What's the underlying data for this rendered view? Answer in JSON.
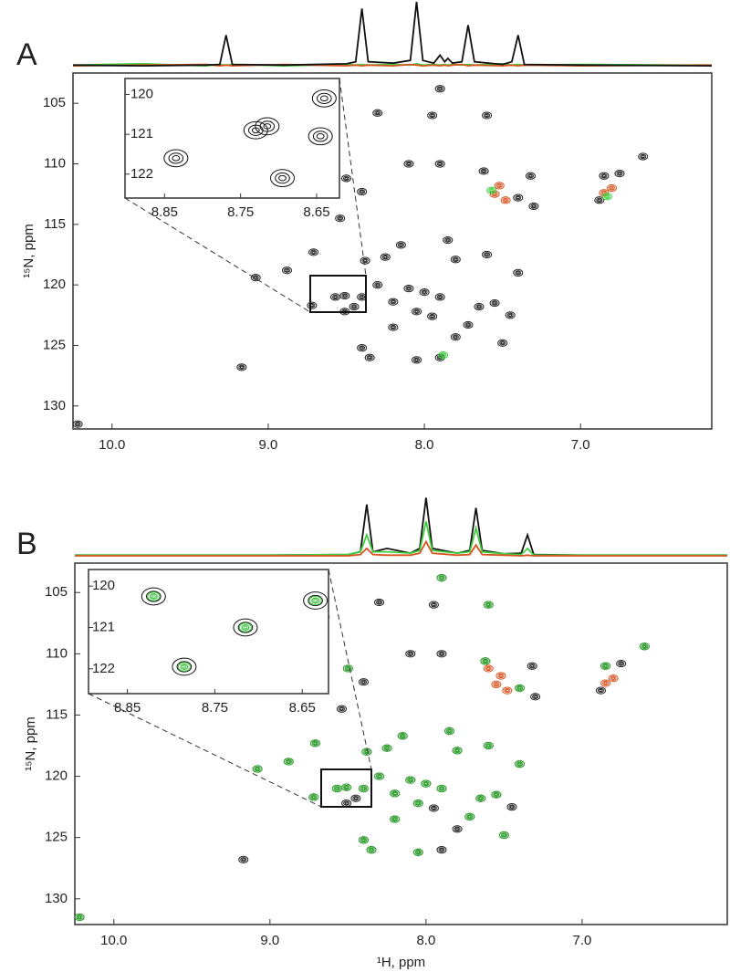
{
  "chart_data": [
    {
      "type": "scatter",
      "panel_label": "A",
      "y_label": "¹⁵N, ppm",
      "xlim": [
        10.25,
        6.16
      ],
      "ylim": [
        102.5,
        131.9
      ],
      "xticks": [
        {
          "value": 10,
          "label": "10.0"
        },
        {
          "value": 9,
          "label": "9.0"
        },
        {
          "value": 8,
          "label": "8.0"
        },
        {
          "value": 7,
          "label": "7.0"
        }
      ],
      "yticks": [
        105,
        110,
        115,
        120,
        125,
        130
      ],
      "series": [
        {
          "color": "#222222",
          "x": [
            10.22,
            9.17,
            9.08,
            8.88,
            8.71,
            8.54,
            8.72,
            8.57,
            8.51,
            8.51,
            8.4,
            8.35,
            8.4,
            8.5,
            8.1,
            7.9,
            7.9,
            7.6,
            7.95,
            8.3,
            8.65,
            8.38,
            8.25,
            8.15,
            7.85,
            7.8,
            7.6,
            7.4,
            7.55,
            7.65,
            7.45,
            7.72,
            7.5,
            7.9,
            8.0,
            8.1,
            8.2,
            8.3,
            8.4,
            8.45,
            8.05,
            7.95,
            8.2,
            7.8,
            7.62,
            7.4,
            7.32,
            7.3,
            6.85,
            6.75,
            6.6,
            6.88,
            8.05,
            7.9
          ],
          "values": [
            131.5,
            126.8,
            119.4,
            118.8,
            117.3,
            114.5,
            121.7,
            121.0,
            120.9,
            122.2,
            125.2,
            126.0,
            112.3,
            111.2,
            110.0,
            110.0,
            103.8,
            106.0,
            106.0,
            105.8,
            107.0,
            118.0,
            117.7,
            116.7,
            116.3,
            117.9,
            117.5,
            119.0,
            121.5,
            121.8,
            122.5,
            123.3,
            124.8,
            121.0,
            120.6,
            120.3,
            121.4,
            120.0,
            121.0,
            121.8,
            122.2,
            122.6,
            123.5,
            124.3,
            110.6,
            112.8,
            111.0,
            113.5,
            111.0,
            110.8,
            109.4,
            113.0,
            126.2,
            126.0
          ]
        },
        {
          "color": "#d9531e",
          "x": [
            7.55,
            7.48,
            6.85,
            6.8,
            7.52
          ],
          "values": [
            112.5,
            113.0,
            112.4,
            112.0,
            111.8
          ]
        },
        {
          "color": "#3ecf3e",
          "x": [
            7.57,
            6.83,
            7.88
          ],
          "values": [
            112.2,
            112.7,
            125.8
          ]
        }
      ],
      "projection": {
        "ylim": [
          0,
          1
        ],
        "x": [
          10.25,
          9.8,
          9.4,
          9.31,
          9.27,
          9.23,
          8.9,
          8.5,
          8.44,
          8.4,
          8.36,
          8.2,
          8.09,
          8.05,
          8.01,
          7.94,
          7.9,
          7.87,
          7.85,
          7.82,
          7.76,
          7.72,
          7.68,
          7.5,
          7.44,
          7.4,
          7.36,
          7.0,
          6.16
        ],
        "series": [
          {
            "color": "#3ecf3e",
            "values": [
              0.05,
              0.07,
              0.04,
              0.06,
              0.05,
              0.06,
              0.04,
              0.06,
              0.05,
              0.06,
              0.05,
              0.06,
              0.05,
              0.07,
              0.05,
              0.06,
              0.05,
              0.06,
              0.05,
              0.06,
              0.05,
              0.06,
              0.05,
              0.07,
              0.05,
              0.06,
              0.05,
              0.06,
              0.05
            ]
          },
          {
            "color": "#d9531e",
            "values": [
              0.04,
              0.05,
              0.06,
              0.04,
              0.05,
              0.04,
              0.06,
              0.04,
              0.05,
              0.04,
              0.05,
              0.04,
              0.06,
              0.05,
              0.04,
              0.05,
              0.04,
              0.05,
              0.04,
              0.05,
              0.06,
              0.04,
              0.05,
              0.04,
              0.05,
              0.04,
              0.05,
              0.04,
              0.05
            ]
          },
          {
            "color": "#111111",
            "values": [
              0.05,
              0.04,
              0.05,
              0.06,
              0.5,
              0.06,
              0.05,
              0.07,
              0.1,
              0.9,
              0.1,
              0.08,
              0.12,
              1.0,
              0.12,
              0.08,
              0.2,
              0.1,
              0.15,
              0.08,
              0.1,
              0.65,
              0.1,
              0.06,
              0.1,
              0.5,
              0.06,
              0.05,
              0.04
            ]
          }
        ]
      },
      "inset": {
        "xlim": [
          8.86,
          8.62
        ],
        "ylim": [
          119.6,
          122.6
        ],
        "xticks": [
          8.85,
          8.75,
          8.65
        ],
        "yticks": [
          120,
          121,
          122
        ],
        "series": [
          {
            "color": "#111111",
            "x": [
              8.835,
              8.73,
              8.715,
              8.64,
              8.645,
              8.695
            ],
            "values": [
              121.6,
              120.9,
              120.8,
              120.1,
              121.05,
              122.1
            ]
          }
        ]
      }
    },
    {
      "type": "scatter",
      "panel_label": "B",
      "y_label": "¹⁵N, ppm",
      "x_label": "¹H, ppm",
      "xlim": [
        10.25,
        6.07
      ],
      "ylim": [
        102.6,
        132.1
      ],
      "xticks": [
        {
          "value": 10,
          "label": "10.0"
        },
        {
          "value": 9,
          "label": "9.0"
        },
        {
          "value": 8,
          "label": "8.0"
        },
        {
          "value": 7,
          "label": "7.0"
        }
      ],
      "yticks": [
        105,
        110,
        115,
        120,
        125,
        130
      ],
      "series": [
        {
          "color": "#222222",
          "x": [
            10.22,
            9.17,
            9.08,
            8.88,
            8.71,
            8.54,
            8.72,
            8.57,
            8.51,
            8.51,
            8.4,
            8.35,
            8.4,
            8.5,
            8.1,
            7.9,
            7.9,
            7.6,
            7.95,
            8.3,
            8.65,
            8.38,
            8.25,
            8.15,
            7.85,
            7.8,
            7.6,
            7.4,
            7.55,
            7.65,
            7.45,
            7.72,
            7.5,
            7.9,
            8.0,
            8.1,
            8.2,
            8.3,
            8.4,
            8.45,
            8.05,
            7.95,
            8.2,
            7.8,
            7.62,
            7.4,
            7.32,
            7.3,
            6.85,
            6.75,
            6.6,
            6.88,
            8.05,
            7.9
          ],
          "values": [
            131.5,
            126.8,
            119.4,
            118.8,
            117.3,
            114.5,
            121.7,
            121.0,
            120.9,
            122.2,
            125.2,
            126.0,
            112.3,
            111.2,
            110.0,
            110.0,
            103.8,
            106.0,
            106.0,
            105.8,
            107.0,
            118.0,
            117.7,
            116.7,
            116.3,
            117.9,
            117.5,
            119.0,
            121.5,
            121.8,
            122.5,
            123.3,
            124.8,
            121.0,
            120.6,
            120.3,
            121.4,
            120.0,
            121.0,
            121.8,
            122.2,
            122.6,
            123.5,
            124.3,
            110.6,
            112.8,
            111.0,
            113.5,
            111.0,
            110.8,
            109.4,
            113.0,
            126.2,
            126.0
          ]
        },
        {
          "color": "#d9531e",
          "x": [
            7.55,
            7.48,
            6.85,
            6.8,
            7.52,
            7.6
          ],
          "values": [
            112.5,
            113.0,
            112.4,
            112.0,
            111.8,
            111.2
          ]
        },
        {
          "color": "#2fae2f",
          "x": [
            10.22,
            9.08,
            8.88,
            8.71,
            8.72,
            8.57,
            8.51,
            8.4,
            8.35,
            8.5,
            7.9,
            7.6,
            8.65,
            8.38,
            8.25,
            8.15,
            7.85,
            7.8,
            7.6,
            7.4,
            7.55,
            7.65,
            7.72,
            7.5,
            7.9,
            8.0,
            8.1,
            8.2,
            8.3,
            8.4,
            8.05,
            8.2,
            7.62,
            7.4,
            6.85,
            6.6,
            8.05
          ],
          "values": [
            131.5,
            119.4,
            118.8,
            117.3,
            121.7,
            121.0,
            120.9,
            125.2,
            126.0,
            111.2,
            103.8,
            106.0,
            107.0,
            118.0,
            117.7,
            116.7,
            116.3,
            117.9,
            117.5,
            119.0,
            121.5,
            121.8,
            123.3,
            124.8,
            121.0,
            120.6,
            120.3,
            121.4,
            120.0,
            121.0,
            122.2,
            123.5,
            110.6,
            112.8,
            111.0,
            109.4,
            126.2
          ]
        }
      ],
      "projection": {
        "ylim": [
          0,
          1
        ],
        "x": [
          10.25,
          9.0,
          8.5,
          8.42,
          8.38,
          8.34,
          8.25,
          8.1,
          8.04,
          8.0,
          7.96,
          7.8,
          7.72,
          7.68,
          7.64,
          7.5,
          7.39,
          7.35,
          7.31,
          7.0,
          6.07
        ],
        "series": [
          {
            "color": "#111111",
            "values": [
              0.05,
              0.05,
              0.06,
              0.1,
              0.8,
              0.1,
              0.15,
              0.08,
              0.15,
              0.9,
              0.15,
              0.08,
              0.12,
              0.75,
              0.12,
              0.07,
              0.08,
              0.35,
              0.06,
              0.05,
              0.05
            ]
          },
          {
            "color": "#3ecf3e",
            "values": [
              0.05,
              0.05,
              0.06,
              0.1,
              0.35,
              0.1,
              0.1,
              0.08,
              0.12,
              0.55,
              0.12,
              0.08,
              0.1,
              0.45,
              0.1,
              0.07,
              0.06,
              0.15,
              0.05,
              0.05,
              0.05
            ]
          },
          {
            "color": "#d9531e",
            "values": [
              0.04,
              0.04,
              0.04,
              0.06,
              0.15,
              0.06,
              0.05,
              0.05,
              0.08,
              0.25,
              0.08,
              0.05,
              0.06,
              0.2,
              0.06,
              0.05,
              0.04,
              0.05,
              0.04,
              0.04,
              0.04
            ]
          }
        ]
      },
      "inset": {
        "xlim": [
          8.86,
          8.62
        ],
        "ylim": [
          119.6,
          122.6
        ],
        "xticks": [
          8.85,
          8.75,
          8.65
        ],
        "yticks": [
          120,
          121,
          122
        ],
        "series": [
          {
            "color": "#111111",
            "x": [
              8.82,
              8.635,
              8.715,
              8.785
            ],
            "values": [
              120.25,
              120.35,
              121.0,
              121.95
            ]
          },
          {
            "color": "#3ecf3e",
            "x": [
              8.82,
              8.635,
              8.715,
              8.785
            ],
            "values": [
              120.25,
              120.35,
              121.0,
              121.95
            ]
          }
        ]
      }
    }
  ]
}
